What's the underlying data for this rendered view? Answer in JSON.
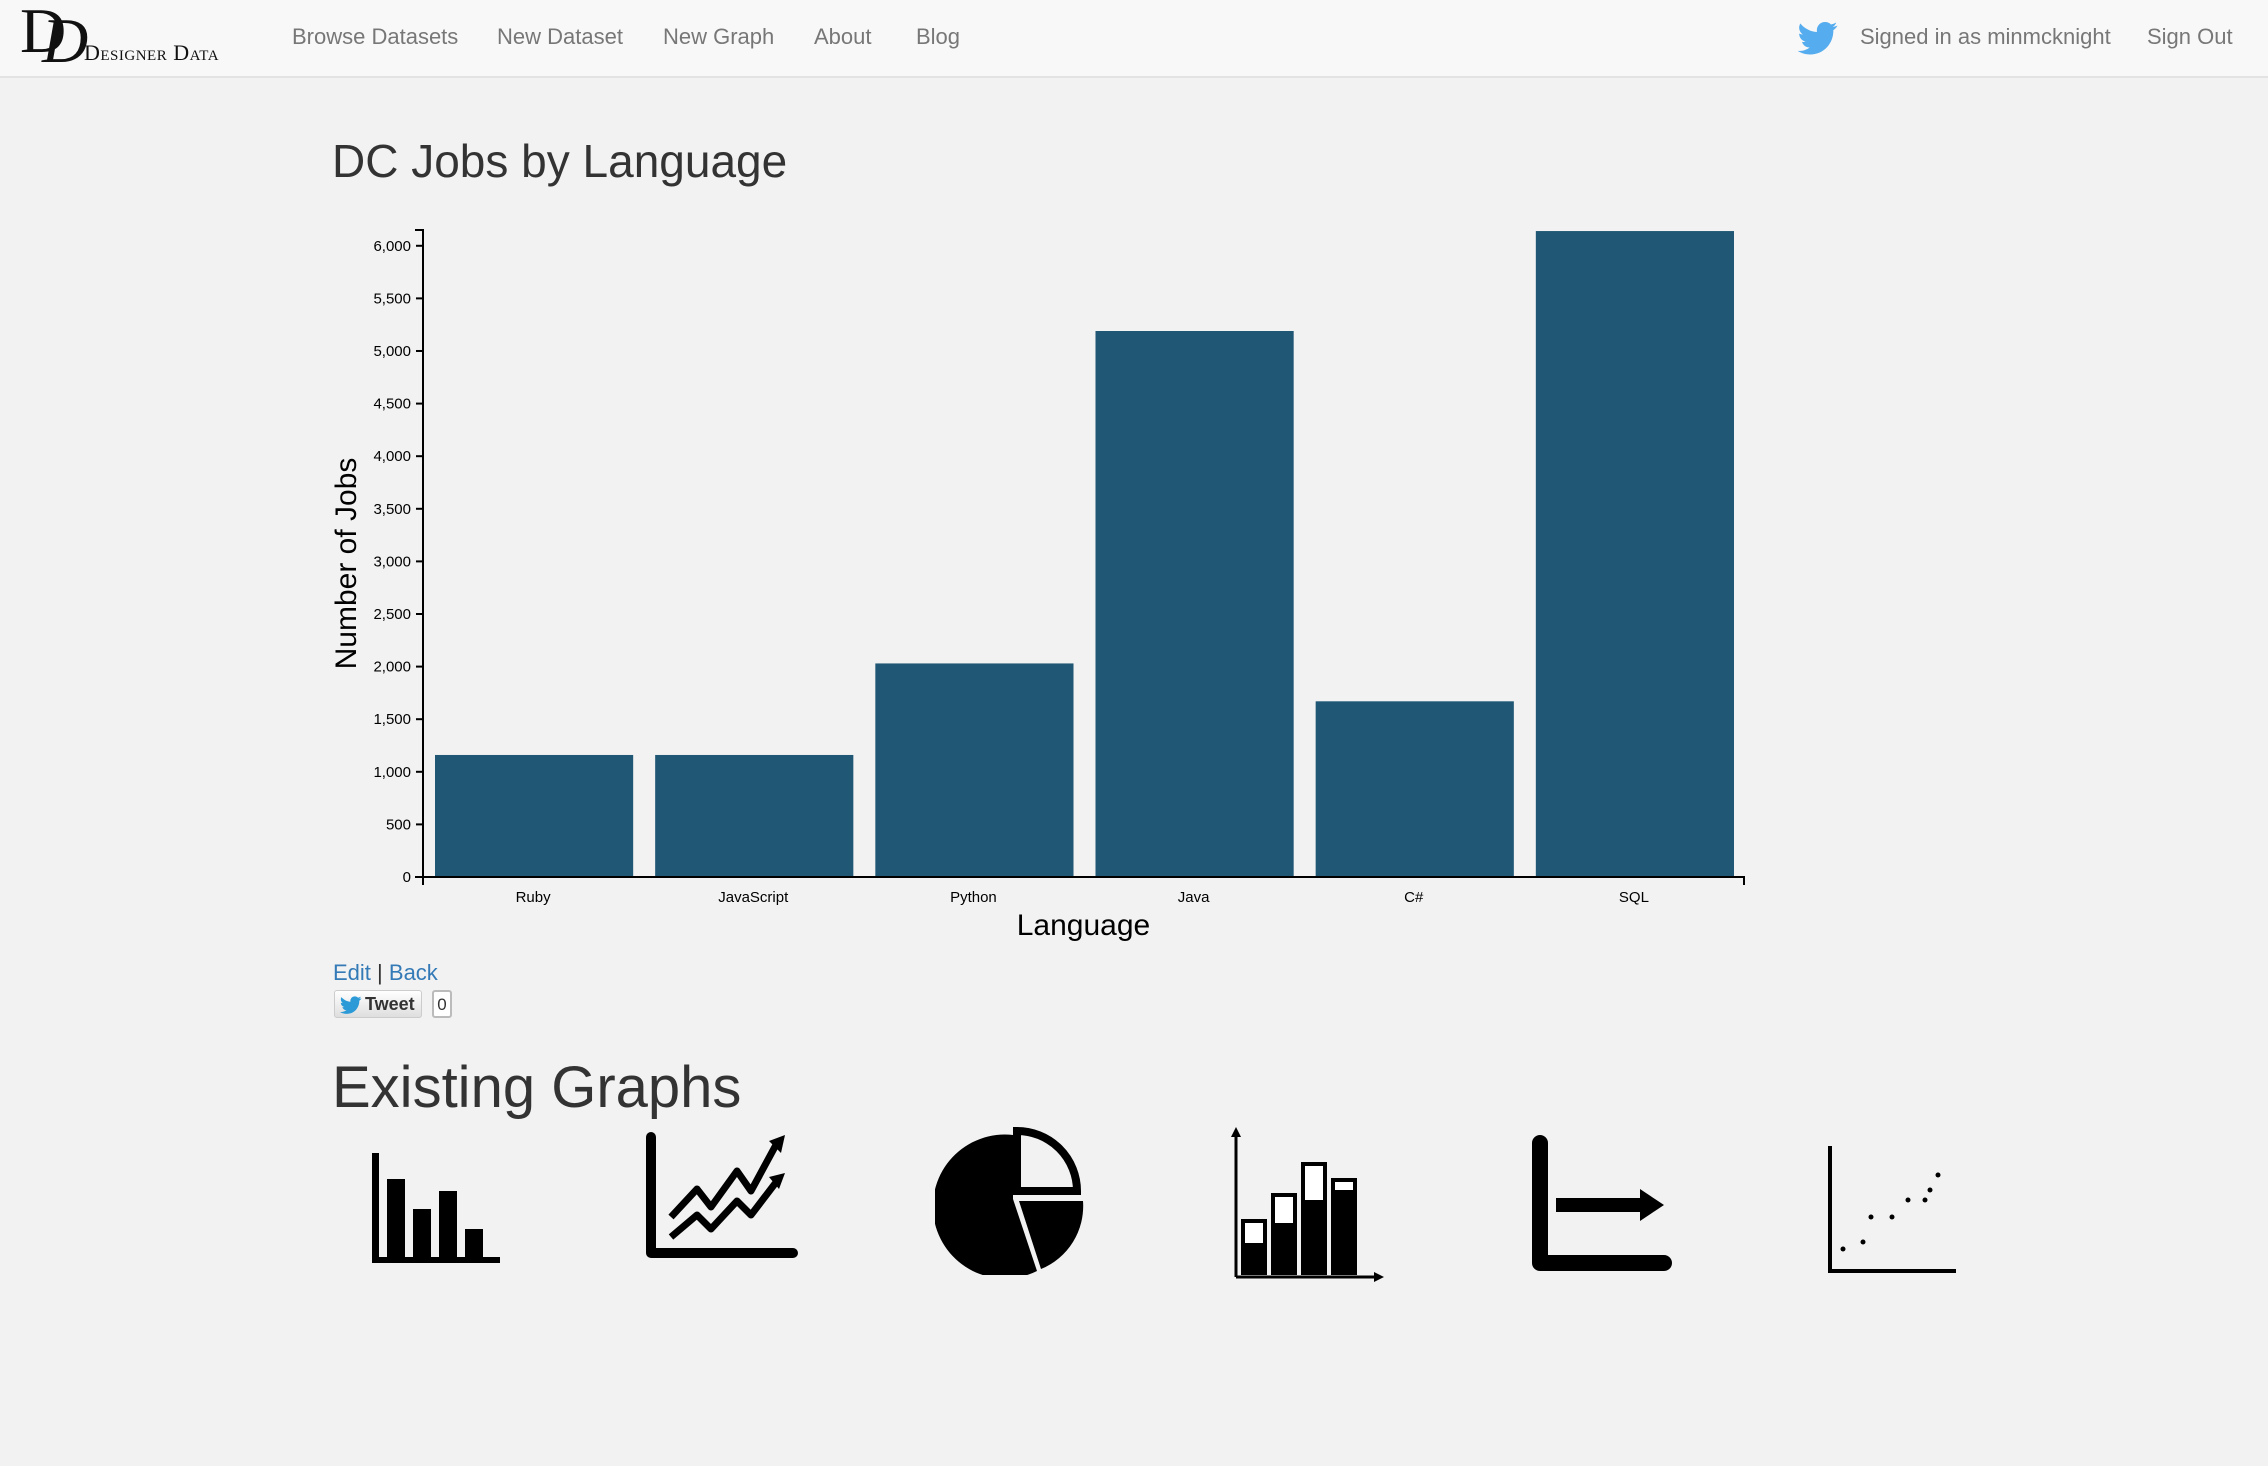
{
  "nav": {
    "brand_initials": "D",
    "brand_text": "Designer Data",
    "links": [
      "Browse Datasets",
      "New Dataset",
      "New Graph",
      "About",
      "Blog"
    ],
    "signed_in": "Signed in as minmcknight",
    "sign_out": "Sign Out"
  },
  "page": {
    "title": "DC Jobs by Language",
    "edit_label": "Edit",
    "separator": "|",
    "back_label": "Back",
    "tweet_label": "Tweet",
    "tweet_count": "0"
  },
  "existing": {
    "title": "Existing Graphs",
    "icons": [
      "bar-chart-icon",
      "line-chart-icon",
      "pie-chart-icon",
      "stacked-bar-chart-icon",
      "horizontal-bar-chart-icon",
      "scatter-plot-icon"
    ]
  },
  "colors": {
    "bar": "#1f5774",
    "link": "#337ab7",
    "twitter": "#55acee"
  },
  "chart_data": {
    "type": "bar",
    "title": "",
    "categories": [
      "Ruby",
      "JavaScript",
      "Python",
      "Java",
      "C#",
      "SQL"
    ],
    "values": [
      1160,
      1160,
      2030,
      5190,
      1670,
      6140
    ],
    "xlabel": "Language",
    "ylabel": "Number of Jobs",
    "ylim": [
      0,
      6150
    ],
    "yticks": [
      0,
      500,
      1000,
      1500,
      2000,
      2500,
      3000,
      3500,
      4000,
      4500,
      5000,
      5500,
      6000
    ],
    "ytick_labels": [
      "0",
      "500",
      "1,000",
      "1,500",
      "2,000",
      "2,500",
      "3,000",
      "3,500",
      "4,000",
      "4,500",
      "5,000",
      "5,500",
      "6,000"
    ],
    "grid": false,
    "legend": "none"
  }
}
